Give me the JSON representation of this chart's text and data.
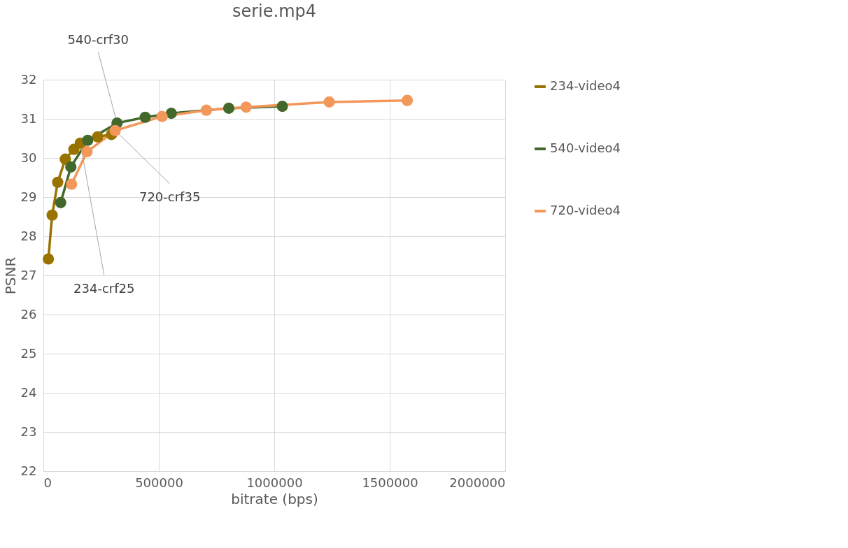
{
  "chart_data": {
    "type": "line",
    "title": "serie.mp4",
    "xlabel": "bitrate (bps)",
    "ylabel": "PSNR",
    "xlim": [
      0,
      2000000
    ],
    "xticks": [
      0,
      500000,
      1000000,
      1500000,
      2000000
    ],
    "ylim": [
      22,
      32
    ],
    "yticks": [
      22,
      23,
      24,
      25,
      26,
      27,
      28,
      29,
      30,
      31,
      32
    ],
    "grid": true,
    "legend": "right",
    "marker": "circle",
    "line_style": "solid",
    "series": [
      {
        "name": "234-video4",
        "color": "#997300",
        "x": [
          21600,
          38000,
          62000,
          95000,
          132000,
          160000,
          235000,
          295000
        ],
        "values": [
          27.42,
          28.54,
          29.38,
          29.97,
          30.22,
          30.38,
          30.54,
          30.6
        ]
      },
      {
        "name": "540-video4",
        "color": "#43682b",
        "x": [
          75000,
          119000,
          192000,
          319000,
          441000,
          554000,
          803000,
          1035000
        ],
        "values": [
          28.86,
          29.77,
          30.45,
          30.89,
          31.04,
          31.14,
          31.27,
          31.32
        ]
      },
      {
        "name": "720-video4",
        "color": "#f4975b",
        "x": [
          122000,
          189000,
          311000,
          514000,
          706000,
          878000,
          1238000,
          1576000
        ],
        "values": [
          29.33,
          30.16,
          30.7,
          31.06,
          31.22,
          31.3,
          31.43,
          31.47
        ]
      }
    ],
    "annotations": [
      {
        "text": "540-crf30",
        "x": 319000,
        "y": 30.89
      },
      {
        "text": "720-crf35",
        "x": 311000,
        "y": 30.7
      },
      {
        "text": "234-crf25",
        "x": 160000,
        "y": 30.38
      }
    ]
  }
}
